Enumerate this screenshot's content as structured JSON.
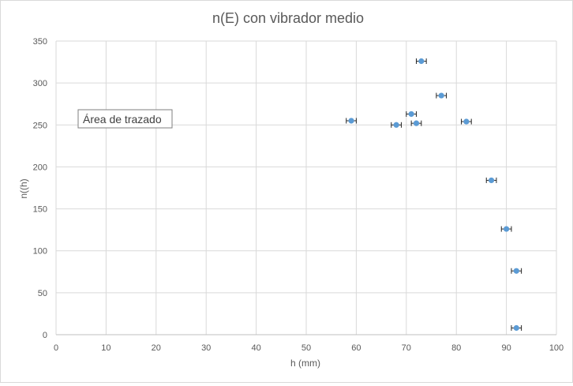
{
  "chart_data": {
    "type": "scatter",
    "title": "n(E) con vibrador medio",
    "xlabel": "h (mm)",
    "ylabel": "n((h)",
    "xlim": [
      0,
      100
    ],
    "ylim": [
      0,
      350
    ],
    "x_ticks": [
      0,
      10,
      20,
      30,
      40,
      50,
      60,
      70,
      80,
      90,
      100
    ],
    "y_ticks": [
      0,
      50,
      100,
      150,
      200,
      250,
      300,
      350
    ],
    "grid": true,
    "legend": "none",
    "marker_color": "#5b9bd5",
    "x_error": 1,
    "series": [
      {
        "x": [
          73,
          77,
          59,
          68,
          71,
          72,
          82,
          87,
          90,
          92,
          92
        ],
        "y": [
          326,
          285,
          255,
          250,
          263,
          252,
          254,
          184,
          126,
          76,
          8
        ]
      }
    ],
    "tooltip": "Área de trazado"
  }
}
